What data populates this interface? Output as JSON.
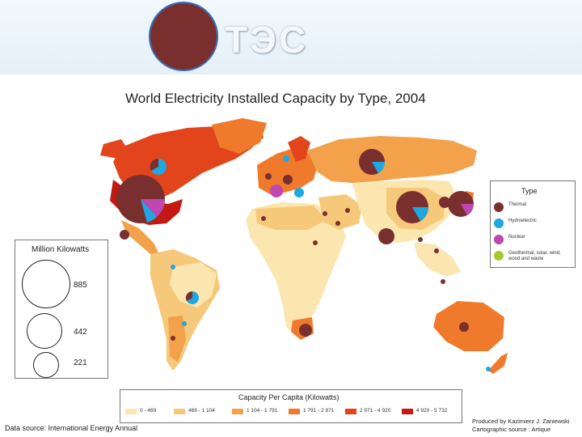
{
  "slide": {
    "title": "ТЭС"
  },
  "map": {
    "title": "World Electricity Installed Capacity by Type, 2004",
    "source": "Data source: International Energy Annual",
    "credit_line1": "Produced by Kazimierz J. Zaniewski",
    "credit_line2": "Cartographic source : Artique"
  },
  "type_legend": {
    "title": "Type",
    "items": [
      {
        "label": "Thermal",
        "color": "#7a2f2f"
      },
      {
        "label": "Hydroelectric",
        "color": "#1ea8e0"
      },
      {
        "label": "Nuclear",
        "color": "#c046b0"
      },
      {
        "label": "Geothermal, solar, wind, wood and waste",
        "color": "#a8c832"
      }
    ]
  },
  "size_legend": {
    "title": "Million Kilowatts",
    "values": [
      "885",
      "442",
      "221"
    ]
  },
  "capacity_legend": {
    "title": "Capacity Per Capita (Kilowatts)",
    "items": [
      {
        "label": "0 - 469",
        "color": "#fbe6b0"
      },
      {
        "label": "469 - 1 104",
        "color": "#f6c879"
      },
      {
        "label": "1 104 - 1 791",
        "color": "#f3a24b"
      },
      {
        "label": "1 791 - 2 971",
        "color": "#ef7a2b"
      },
      {
        "label": "2 971 - 4 920",
        "color": "#e2451c"
      },
      {
        "label": "4 920 - 5 732",
        "color": "#c21a12"
      }
    ]
  }
}
